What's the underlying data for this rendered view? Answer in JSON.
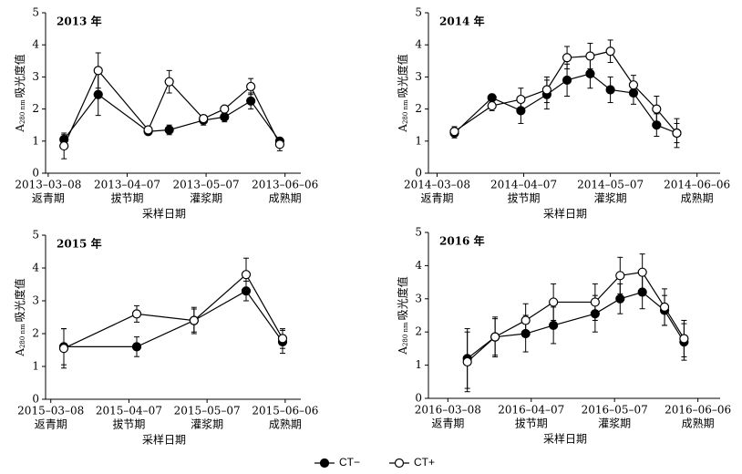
{
  "chart_data": [
    {
      "type": "line",
      "title": "2013 年",
      "ylabel_parts": [
        "A",
        "280 nm",
        "吸光度值"
      ],
      "xlabel": "采样日期",
      "xlim": [
        "2013-03-07",
        "2013-06-12"
      ],
      "ylim": [
        0,
        5
      ],
      "yticks": [
        0,
        1,
        2,
        3,
        4,
        5
      ],
      "xticks": [
        {
          "value": "2013-03-08",
          "label": "2013–03–08"
        },
        {
          "value": "2013-04-07",
          "label": "2013–04–07"
        },
        {
          "value": "2013-05-07",
          "label": "2013–05–07"
        },
        {
          "value": "2013-06-06",
          "label": "2013–06–06"
        }
      ],
      "xtick_stages": [
        "返青期",
        "拔节期",
        "灌浆期",
        "成熟期"
      ],
      "x": [
        "2013-03-14",
        "2013-03-27",
        "2013-04-15",
        "2013-04-23",
        "2013-05-06",
        "2013-05-14",
        "2013-05-24",
        "2013-06-04"
      ],
      "series": [
        {
          "name": "CT−",
          "color": "#000000",
          "fill": "#000000",
          "values": [
            1.05,
            2.45,
            1.3,
            1.35,
            1.65,
            1.75,
            2.25,
            1.0
          ],
          "errors": [
            0.15,
            0.65,
            0.1,
            0.15,
            0.15,
            0.15,
            0.25,
            0.1
          ]
        },
        {
          "name": "CT+",
          "color": "#000000",
          "fill": "#ffffff",
          "values": [
            0.85,
            3.2,
            1.35,
            2.85,
            1.7,
            2.0,
            2.7,
            0.9
          ],
          "errors": [
            0.4,
            0.55,
            0.1,
            0.35,
            0.1,
            0.1,
            0.25,
            0.2
          ]
        }
      ]
    },
    {
      "type": "line",
      "title": "2014 年",
      "ylabel_parts": [
        "A",
        "280 nm",
        "吸光度值"
      ],
      "xlabel": "采样日期",
      "xlim": [
        "2014-03-05",
        "2014-06-14"
      ],
      "ylim": [
        0,
        5
      ],
      "yticks": [
        0,
        1,
        2,
        3,
        4,
        5
      ],
      "xticks": [
        {
          "value": "2014-03-08",
          "label": "2014–03–08"
        },
        {
          "value": "2014-04-07",
          "label": "2014–04–07"
        },
        {
          "value": "2014-05-07",
          "label": "2014–05–07"
        },
        {
          "value": "2014-06-06",
          "label": "2014–06–06"
        }
      ],
      "xtick_stages": [
        "返青期",
        "拔节期",
        "灌浆期",
        "成熟期"
      ],
      "x": [
        "2014-03-14",
        "2014-03-27",
        "2014-04-06",
        "2014-04-15",
        "2014-04-22",
        "2014-04-30",
        "2014-05-07",
        "2014-05-15",
        "2014-05-23",
        "2014-05-30"
      ],
      "series": [
        {
          "name": "CT−",
          "color": "#000000",
          "fill": "#000000",
          "values": [
            1.25,
            2.35,
            1.95,
            2.45,
            2.9,
            3.1,
            2.6,
            2.5,
            1.5,
            1.25
          ],
          "errors": [
            0.15,
            0.1,
            0.4,
            0.45,
            0.5,
            0.45,
            0.4,
            0.35,
            0.35,
            0.3
          ]
        },
        {
          "name": "CT+",
          "color": "#000000",
          "fill": "#ffffff",
          "values": [
            1.3,
            2.1,
            2.3,
            2.6,
            3.6,
            3.65,
            3.8,
            2.75,
            2.0,
            1.25
          ],
          "errors": [
            0.15,
            0.15,
            0.35,
            0.4,
            0.35,
            0.4,
            0.35,
            0.3,
            0.4,
            0.45
          ]
        }
      ]
    },
    {
      "type": "line",
      "title": "2015 年",
      "ylabel_parts": [
        "A",
        "280 nm",
        "吸光度值"
      ],
      "xlabel": "采样日期",
      "xlim": [
        "2015-03-06",
        "2015-06-12"
      ],
      "ylim": [
        0,
        5
      ],
      "yticks": [
        0,
        1,
        2,
        3,
        4,
        5
      ],
      "xticks": [
        {
          "value": "2015-03-08",
          "label": "2015–03–08"
        },
        {
          "value": "2015-04-07",
          "label": "2015–04–07"
        },
        {
          "value": "2015-05-07",
          "label": "2015–05–07"
        },
        {
          "value": "2015-06-06",
          "label": "2015–06–06"
        }
      ],
      "xtick_stages": [
        "返青期",
        "拔节期",
        "灌浆期",
        "成熟期"
      ],
      "x": [
        "2015-03-13",
        "2015-04-10",
        "2015-05-02",
        "2015-05-22",
        "2015-06-05"
      ],
      "series": [
        {
          "name": "CT−",
          "color": "#000000",
          "fill": "#000000",
          "values": [
            1.6,
            1.6,
            2.4,
            3.3,
            1.75
          ],
          "errors": [
            0.55,
            0.3,
            0.4,
            0.3,
            0.35
          ]
        },
        {
          "name": "CT+",
          "color": "#000000",
          "fill": "#ffffff",
          "values": [
            1.55,
            2.6,
            2.4,
            3.8,
            1.85
          ],
          "errors": [
            0.6,
            0.25,
            0.35,
            0.5,
            0.3
          ]
        }
      ]
    },
    {
      "type": "line",
      "title": "2016 年",
      "ylabel_parts": [
        "A",
        "280 nm",
        "吸光度值"
      ],
      "xlabel": "采样日期",
      "xlim": [
        "2016-03-01",
        "2016-06-14"
      ],
      "ylim": [
        0,
        5
      ],
      "yticks": [
        0,
        1,
        2,
        3,
        4,
        5
      ],
      "xticks": [
        {
          "value": "2016-03-08",
          "label": "2016–03–08"
        },
        {
          "value": "2016-04-07",
          "label": "2016–04–07"
        },
        {
          "value": "2016-05-07",
          "label": "2016–05–07"
        },
        {
          "value": "2016-06-06",
          "label": "2016–06–06"
        }
      ],
      "xtick_stages": [
        "返青期",
        "拔节期",
        "灌浆期",
        "成熟期"
      ],
      "x": [
        "2016-03-15",
        "2016-03-25",
        "2016-04-05",
        "2016-04-15",
        "2016-04-30",
        "2016-05-09",
        "2016-05-17",
        "2016-05-25",
        "2016-06-01"
      ],
      "series": [
        {
          "name": "CT−",
          "color": "#000000",
          "fill": "#000000",
          "values": [
            1.2,
            1.85,
            1.95,
            2.2,
            2.55,
            3.0,
            3.2,
            2.65,
            1.7
          ],
          "errors": [
            0.9,
            0.55,
            0.55,
            0.55,
            0.55,
            0.45,
            0.5,
            0.45,
            0.55
          ]
        },
        {
          "name": "CT+",
          "color": "#000000",
          "fill": "#ffffff",
          "values": [
            1.1,
            1.85,
            2.35,
            2.9,
            2.9,
            3.7,
            3.8,
            2.75,
            1.8
          ],
          "errors": [
            0.9,
            0.6,
            0.5,
            0.55,
            0.55,
            0.55,
            0.55,
            0.55,
            0.55
          ]
        }
      ]
    }
  ]
}
